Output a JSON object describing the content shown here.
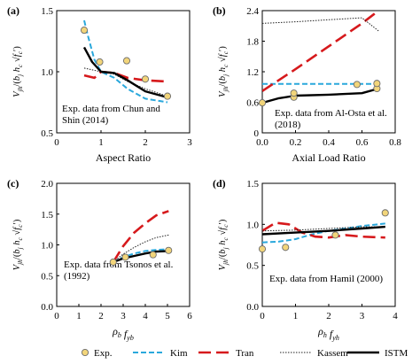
{
  "colors": {
    "exp": "#f2d57a",
    "kim": "#2aa8dc",
    "tran": "#d6191c",
    "kassem": "#222222",
    "istm": "#000000"
  },
  "legend": [
    "Exp.",
    "Kim",
    "Tran",
    "Kassem",
    "ISTM"
  ],
  "chart_data": [
    {
      "id": "a",
      "type": "line",
      "letter": "(a)",
      "xlabel": "Aspect Ratio",
      "ylabel": "V_jh/(b_j h_c √f'_c)",
      "xlim": [
        0,
        3
      ],
      "ylim": [
        0.5,
        1.5
      ],
      "xticks": [
        0,
        1,
        2,
        3
      ],
      "yticks": [
        0.5,
        1.0,
        1.5
      ],
      "xtick_labels": [
        "0",
        "1",
        "2",
        "3"
      ],
      "ytick_labels": [
        "0.5",
        "1.0",
        "1.5"
      ],
      "annotation": [
        "Exp. data from Chun and",
        "Shin (2014)"
      ],
      "series": [
        {
          "name": "Exp.",
          "style": "marker",
          "x": [
            0.62,
            0.97,
            1.58,
            2.0,
            2.5
          ],
          "y": [
            1.34,
            1.08,
            1.09,
            0.94,
            0.8
          ]
        },
        {
          "name": "Kim",
          "style": "dash",
          "x": [
            0.62,
            0.7,
            0.85,
            1.0,
            1.3,
            1.6,
            2.0,
            2.5
          ],
          "y": [
            1.42,
            1.3,
            1.1,
            1.0,
            0.95,
            0.86,
            0.78,
            0.75
          ]
        },
        {
          "name": "Tran",
          "style": "longdash",
          "x": [
            0.62,
            0.85,
            1.0,
            1.3,
            1.6,
            2.0,
            2.5
          ],
          "y": [
            0.97,
            0.95,
            1.0,
            0.99,
            0.95,
            0.93,
            0.92
          ]
        },
        {
          "name": "Kassem",
          "style": "dot",
          "x": [
            0.62,
            1.0,
            1.3,
            1.6,
            2.0,
            2.5
          ],
          "y": [
            1.03,
            1.0,
            0.98,
            0.92,
            0.86,
            0.8
          ]
        },
        {
          "name": "ISTM",
          "style": "solid",
          "x": [
            0.62,
            0.8,
            1.0,
            1.3,
            1.6,
            2.0,
            2.5
          ],
          "y": [
            1.2,
            1.08,
            1.0,
            0.99,
            0.93,
            0.84,
            0.79
          ]
        }
      ]
    },
    {
      "id": "b",
      "type": "line",
      "letter": "(b)",
      "xlabel": "Axial Load Ratio",
      "ylabel": "V_jh/(b_j h_c √f'_c)",
      "xlim": [
        0,
        0.8
      ],
      "ylim": [
        0,
        2.4
      ],
      "xticks": [
        0,
        0.2,
        0.4,
        0.6,
        0.8
      ],
      "yticks": [
        0,
        0.6,
        1.2,
        1.8,
        2.4
      ],
      "xtick_labels": [
        "0.0",
        "0.2",
        "0.4",
        "0.6",
        "0.8"
      ],
      "ytick_labels": [
        "0",
        "0.6",
        "1.2",
        "1.8",
        "2.4"
      ],
      "annotation": [
        "Exp. data from Al-Osta et al.",
        "(2018)"
      ],
      "series": [
        {
          "name": "Exp.",
          "style": "marker",
          "x": [
            0.0,
            0.19,
            0.19,
            0.57,
            0.69,
            0.69
          ],
          "y": [
            0.59,
            0.7,
            0.78,
            0.95,
            0.87,
            0.97
          ]
        },
        {
          "name": "Kim",
          "style": "dash",
          "x": [
            0.0,
            0.2,
            0.4,
            0.6,
            0.7
          ],
          "y": [
            0.96,
            0.96,
            0.96,
            0.96,
            0.96
          ]
        },
        {
          "name": "Tran",
          "style": "longdash",
          "x": [
            0.0,
            0.2,
            0.4,
            0.6,
            0.7
          ],
          "y": [
            0.82,
            1.25,
            1.7,
            2.15,
            2.4
          ]
        },
        {
          "name": "Kassem",
          "style": "dot",
          "x": [
            0.0,
            0.2,
            0.4,
            0.6,
            0.7
          ],
          "y": [
            2.15,
            2.18,
            2.22,
            2.26,
            2.0
          ]
        },
        {
          "name": "ISTM",
          "style": "solid",
          "x": [
            0.0,
            0.1,
            0.2,
            0.4,
            0.6,
            0.7
          ],
          "y": [
            0.59,
            0.68,
            0.73,
            0.75,
            0.78,
            0.87
          ]
        }
      ]
    },
    {
      "id": "c",
      "type": "line",
      "letter": "(c)",
      "xlabel": "ρ_b f_yb",
      "ylabel": "V_jh/(b_j h_c √f'_c)",
      "xlim": [
        0,
        6
      ],
      "ylim": [
        0,
        2.0
      ],
      "xticks": [
        0,
        1,
        2,
        3,
        4,
        5,
        6
      ],
      "yticks": [
        0,
        0.5,
        1.0,
        1.5,
        2.0
      ],
      "xtick_labels": [
        "0",
        "1",
        "2",
        "3",
        "4",
        "5",
        "6"
      ],
      "ytick_labels": [
        "0.0",
        "0.5",
        "1.0",
        "1.5",
        "2.0"
      ],
      "annotation": [
        "Exp. data from Tsonos et al.",
        "(1992)"
      ],
      "series": [
        {
          "name": "Exp.",
          "style": "marker",
          "x": [
            2.55,
            3.1,
            4.35,
            5.05
          ],
          "y": [
            0.72,
            0.8,
            0.84,
            0.91
          ]
        },
        {
          "name": "Kim",
          "style": "dash",
          "x": [
            2.55,
            3.0,
            3.5,
            4.0,
            4.5,
            5.05
          ],
          "y": [
            0.72,
            0.8,
            0.86,
            0.9,
            0.92,
            0.93
          ]
        },
        {
          "name": "Tran",
          "style": "longdash",
          "x": [
            2.55,
            3.0,
            3.5,
            4.0,
            4.5,
            5.05
          ],
          "y": [
            0.72,
            0.98,
            1.2,
            1.35,
            1.48,
            1.55
          ]
        },
        {
          "name": "Kassem",
          "style": "dot",
          "x": [
            2.55,
            3.0,
            3.5,
            4.0,
            4.5,
            5.05
          ],
          "y": [
            0.72,
            0.85,
            0.96,
            1.05,
            1.12,
            1.16
          ]
        },
        {
          "name": "ISTM",
          "style": "solid",
          "x": [
            2.55,
            3.0,
            3.5,
            4.0,
            4.5,
            5.05
          ],
          "y": [
            0.72,
            0.78,
            0.82,
            0.86,
            0.89,
            0.9
          ]
        }
      ]
    },
    {
      "id": "d",
      "type": "line",
      "letter": "(d)",
      "xlabel": "ρ_h f_yh",
      "ylabel": "V_jh/(b_j h_c √f'_c)",
      "xlim": [
        0,
        4
      ],
      "ylim": [
        0,
        1.5
      ],
      "xticks": [
        0,
        1,
        2,
        3,
        4
      ],
      "yticks": [
        0,
        0.5,
        1.0,
        1.5
      ],
      "xtick_labels": [
        "0",
        "1",
        "2",
        "3",
        "4"
      ],
      "ytick_labels": [
        "0.0",
        "0.5",
        "1.0",
        "1.5"
      ],
      "annotation": [
        "Exp. data from Hamil (2000)"
      ],
      "series": [
        {
          "name": "Exp.",
          "style": "marker",
          "x": [
            0.0,
            0.7,
            2.2,
            3.7
          ],
          "y": [
            0.7,
            0.72,
            0.87,
            1.14
          ]
        },
        {
          "name": "Kim",
          "style": "dash",
          "x": [
            0.0,
            0.5,
            1.0,
            1.5,
            2.0,
            2.5,
            3.0,
            3.7
          ],
          "y": [
            0.78,
            0.79,
            0.82,
            0.88,
            0.92,
            0.95,
            0.98,
            1.01
          ]
        },
        {
          "name": "Tran",
          "style": "longdash",
          "x": [
            0.0,
            0.4,
            0.8,
            1.2,
            1.6,
            2.0,
            2.5,
            3.0,
            3.7
          ],
          "y": [
            0.92,
            1.02,
            1.0,
            0.9,
            0.85,
            0.84,
            0.87,
            0.85,
            0.84
          ]
        },
        {
          "name": "Kassem",
          "style": "dot",
          "x": [
            0.0,
            1.0,
            2.0,
            3.0,
            3.7
          ],
          "y": [
            0.92,
            0.93,
            0.95,
            0.97,
            0.97
          ]
        },
        {
          "name": "ISTM",
          "style": "solid",
          "x": [
            0.0,
            1.0,
            2.0,
            3.0,
            3.7
          ],
          "y": [
            0.88,
            0.9,
            0.92,
            0.95,
            0.97
          ]
        }
      ]
    }
  ]
}
